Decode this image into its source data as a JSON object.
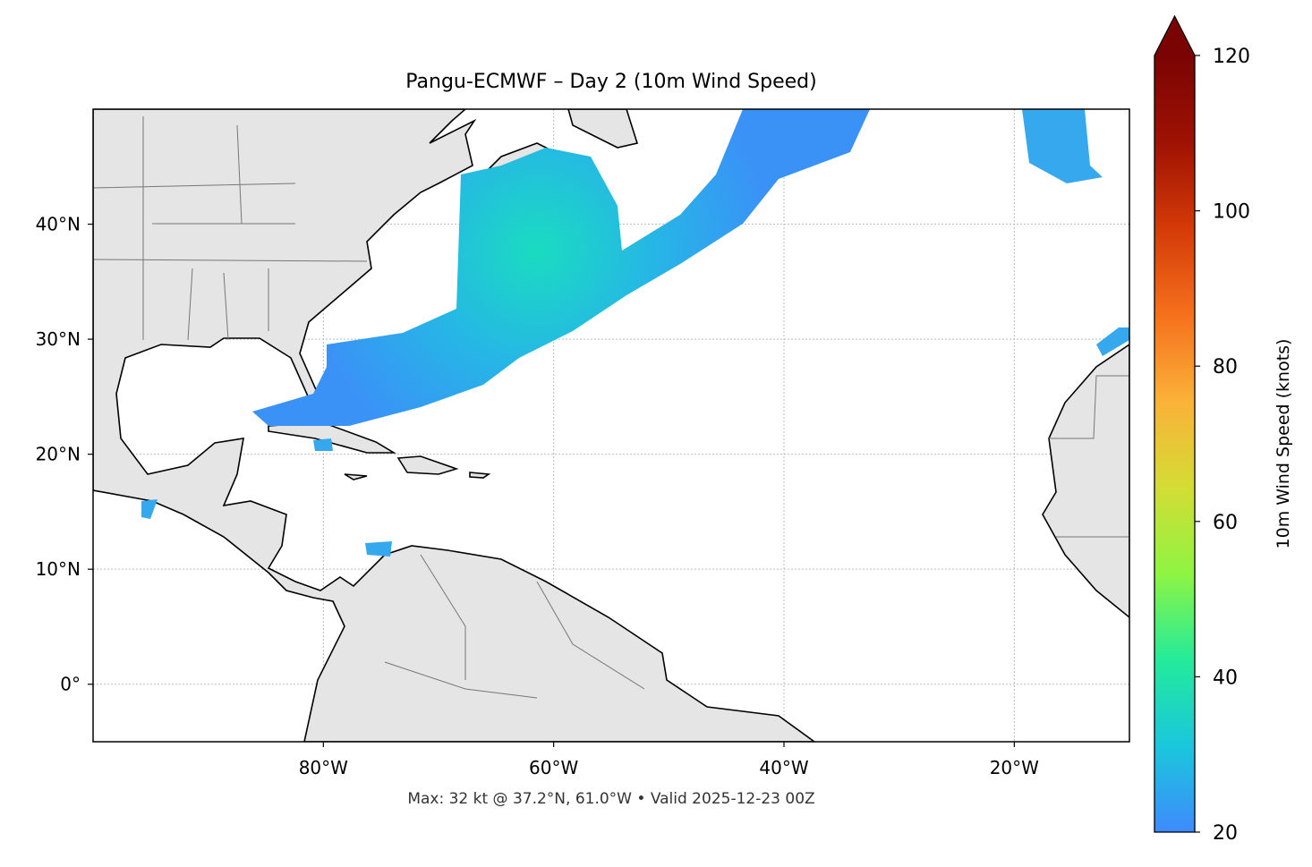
{
  "chart_data": {
    "type": "map",
    "title": "Pangu-ECMWF – Day 2 (10m Wind Speed)",
    "caption": "Max: 32 kt @ 37.2°N, 61.0°W • Valid 2025-12-23 00Z",
    "xlim": [
      -100,
      -10
    ],
    "ylim": [
      -5,
      50
    ],
    "xticks": [
      {
        "value": -80,
        "label": "80°W"
      },
      {
        "value": -60,
        "label": "60°W"
      },
      {
        "value": -40,
        "label": "40°W"
      },
      {
        "value": -20,
        "label": "20°W"
      }
    ],
    "yticks": [
      {
        "value": 0,
        "label": "0°"
      },
      {
        "value": 10,
        "label": "10°N"
      },
      {
        "value": 20,
        "label": "20°N"
      },
      {
        "value": 30,
        "label": "30°N"
      },
      {
        "value": 40,
        "label": "40°N"
      }
    ],
    "grid": true,
    "colorbar": {
      "label": "10m Wind Speed (knots)",
      "lim": [
        20,
        120
      ],
      "ticks": [
        20,
        40,
        60,
        80,
        100,
        120
      ],
      "colors": [
        "#3e8bfc",
        "#1ac7dc",
        "#23eb9a",
        "#8ff442",
        "#d4dc34",
        "#fbb139",
        "#f5701c",
        "#d33a08",
        "#9e1203",
        "#7a0403"
      ]
    }
  }
}
